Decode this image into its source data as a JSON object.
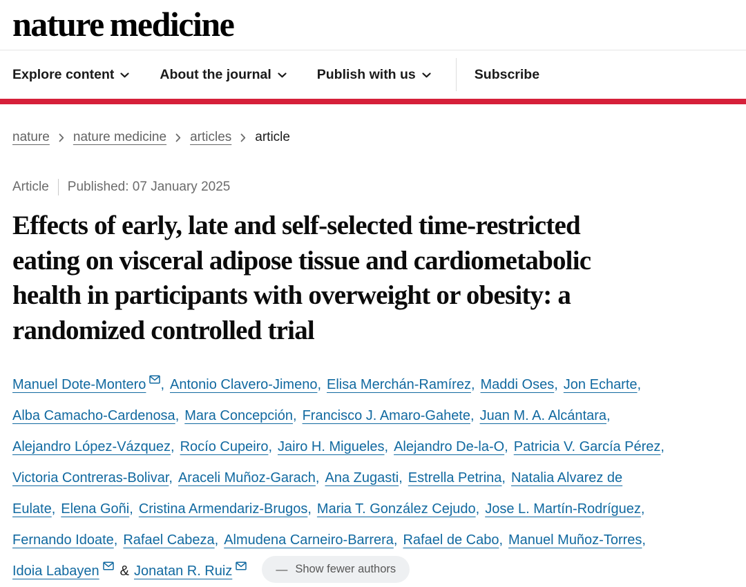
{
  "colors": {
    "accent_red": "#d6203a",
    "link_blue": "#1169a0"
  },
  "header": {
    "logo": "nature medicine",
    "nav": {
      "items": [
        {
          "label": "Explore content",
          "dropdown": true
        },
        {
          "label": "About the journal",
          "dropdown": true
        },
        {
          "label": "Publish with us",
          "dropdown": true
        },
        {
          "label": "Subscribe",
          "dropdown": false
        }
      ]
    }
  },
  "breadcrumb": {
    "items": [
      {
        "label": "nature"
      },
      {
        "label": "nature medicine"
      },
      {
        "label": "articles"
      },
      {
        "label": "article",
        "current": true
      }
    ]
  },
  "meta": {
    "type_label": "Article",
    "published": "Published: 07 January 2025"
  },
  "article": {
    "title": "Effects of early, late and self-selected time-restricted eating on visceral adipose tissue and cardiometabolic health in participants with overweight or obesity: a randomized controlled trial",
    "title_lines": [
      "Effects of early, late and self-selected time-restricted",
      "eating on visceral adipose tissue and cardiometabolic",
      "health in participants with overweight or obesity: a",
      "randomized controlled trial"
    ]
  },
  "authors": {
    "toggle": {
      "dash": "—",
      "label": "Show fewer authors"
    },
    "lines": [
      [
        {
          "text": "Manuel Dote-Montero",
          "type": "link",
          "mail": true
        },
        {
          "text": ",",
          "type": "comma"
        },
        {
          "text": "Antonio Clavero-Jimeno",
          "type": "link"
        },
        {
          "text": ",",
          "type": "comma"
        },
        {
          "text": "Elisa Merchán-Ramírez",
          "type": "link"
        },
        {
          "text": ",",
          "type": "comma"
        },
        {
          "text": "Maddi Oses",
          "type": "link"
        },
        {
          "text": ",",
          "type": "comma"
        },
        {
          "text": "Jon Echarte",
          "type": "link"
        },
        {
          "text": ",",
          "type": "comma"
        }
      ],
      [
        {
          "text": "Alba Camacho-Cardenosa",
          "type": "link"
        },
        {
          "text": ",",
          "type": "comma"
        },
        {
          "text": "Mara Concepción",
          "type": "link"
        },
        {
          "text": ",",
          "type": "comma"
        },
        {
          "text": "Francisco J. Amaro-Gahete",
          "type": "link"
        },
        {
          "text": ",",
          "type": "comma"
        },
        {
          "text": "Juan M. A. Alcántara",
          "type": "link"
        },
        {
          "text": ",",
          "type": "comma"
        }
      ],
      [
        {
          "text": "Alejandro López-Vázquez",
          "type": "link"
        },
        {
          "text": ",",
          "type": "comma"
        },
        {
          "text": "Rocío Cupeiro",
          "type": "link"
        },
        {
          "text": ",",
          "type": "comma"
        },
        {
          "text": "Jairo H. Migueles",
          "type": "link"
        },
        {
          "text": ",",
          "type": "comma"
        },
        {
          "text": "Alejandro De-la-O",
          "type": "link"
        },
        {
          "text": ",",
          "type": "comma"
        },
        {
          "text": "Patricia V. García Pérez",
          "type": "link"
        },
        {
          "text": ",",
          "type": "comma"
        }
      ],
      [
        {
          "text": "Victoria Contreras-Bolivar",
          "type": "link"
        },
        {
          "text": ",",
          "type": "comma"
        },
        {
          "text": "Araceli Muñoz-Garach",
          "type": "link"
        },
        {
          "text": ",",
          "type": "comma"
        },
        {
          "text": "Ana Zugasti",
          "type": "link"
        },
        {
          "text": ",",
          "type": "comma"
        },
        {
          "text": "Estrella Petrina",
          "type": "link"
        },
        {
          "text": ",",
          "type": "comma"
        },
        {
          "text": "Natalia Alvarez de",
          "type": "link"
        }
      ],
      [
        {
          "text": "Eulate",
          "type": "link"
        },
        {
          "text": ",",
          "type": "comma"
        },
        {
          "text": "Elena Goñi",
          "type": "link"
        },
        {
          "text": ",",
          "type": "comma"
        },
        {
          "text": "Cristina Armendariz-Brugos",
          "type": "link"
        },
        {
          "text": ",",
          "type": "comma"
        },
        {
          "text": "Maria T. González Cejudo",
          "type": "link"
        },
        {
          "text": ",",
          "type": "comma"
        },
        {
          "text": "Jose L. Martín-Rodríguez",
          "type": "link"
        },
        {
          "text": ",",
          "type": "comma"
        }
      ],
      [
        {
          "text": "Fernando Idoate",
          "type": "link"
        },
        {
          "text": ",",
          "type": "comma"
        },
        {
          "text": "Rafael Cabeza",
          "type": "link"
        },
        {
          "text": ",",
          "type": "comma"
        },
        {
          "text": "Almudena Carneiro-Barrera",
          "type": "link"
        },
        {
          "text": ",",
          "type": "comma"
        },
        {
          "text": "Rafael de Cabo",
          "type": "link"
        },
        {
          "text": ",",
          "type": "comma"
        },
        {
          "text": "Manuel Muñoz-Torres",
          "type": "link"
        },
        {
          "text": ",",
          "type": "comma"
        }
      ],
      [
        {
          "text": "Idoia Labayen",
          "type": "link",
          "mail": true
        },
        {
          "text": "&",
          "type": "amp"
        },
        {
          "text": "Jonatan R. Ruiz",
          "type": "link",
          "mail": true
        }
      ]
    ]
  }
}
